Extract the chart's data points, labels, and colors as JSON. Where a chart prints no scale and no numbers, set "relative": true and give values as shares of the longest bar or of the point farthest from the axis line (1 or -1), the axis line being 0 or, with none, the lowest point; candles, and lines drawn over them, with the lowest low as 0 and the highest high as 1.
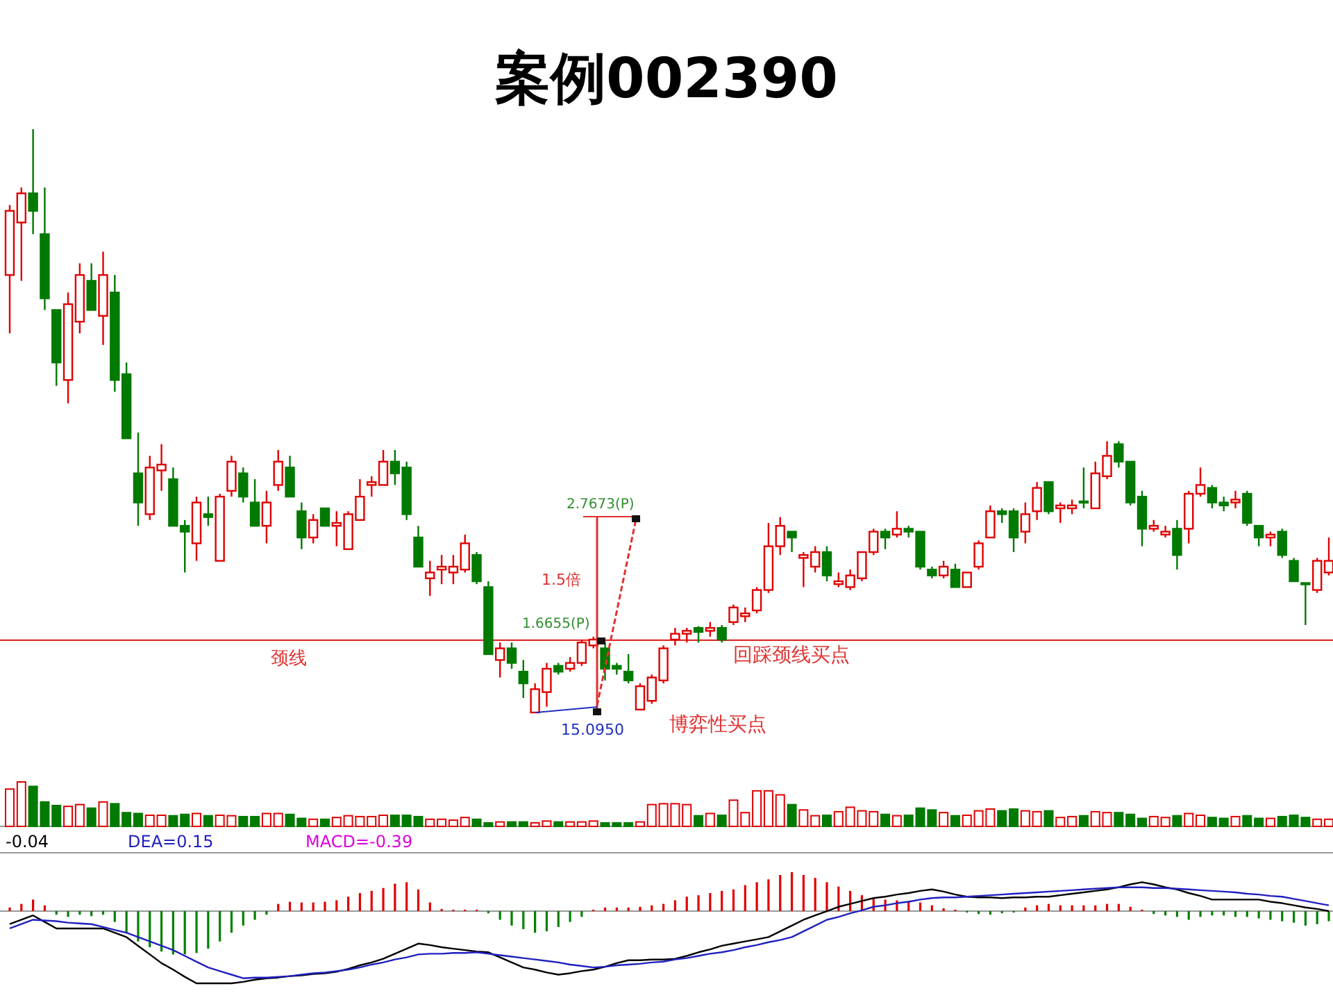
{
  "chart_data": [
    {
      "type": "candlestick",
      "title": "案例002390",
      "relative": true,
      "colors": [
        "#e00000",
        "#e00000",
        "#007a00",
        "#007a00",
        "#007a00",
        "#e00000",
        "#e00000",
        "#007a00",
        "#e00000",
        "#007a00",
        "#007a00",
        "#007a00",
        "#e00000",
        "#e00000",
        "#007a00",
        "#007a00",
        "#e00000",
        "#007a00",
        "#e00000",
        "#e00000",
        "#007a00",
        "#007a00",
        "#e00000",
        "#e00000",
        "#007a00",
        "#007a00",
        "#e00000",
        "#007a00",
        "#e00000",
        "#e00000",
        "#e00000",
        "#e00000",
        "#e00000",
        "#007a00",
        "#007a00",
        "#007a00",
        "#e00000",
        "#e00000",
        "#e00000",
        "#e00000",
        "#007a00",
        "#007a00",
        "#e00000",
        "#007a00",
        "#007a00",
        "#e00000",
        "#e00000",
        "#007a00",
        "#e00000",
        "#e00000",
        "#e00000",
        "#007a00",
        "#007a00",
        "#007a00",
        "#e00000",
        "#e00000",
        "#e00000",
        "#e00000",
        "#e00000",
        "#007a00",
        "#e00000",
        "#007a00",
        "#e00000",
        "#e00000",
        "#e00000",
        "#e00000",
        "#e00000",
        "#007a00",
        "#e00000",
        "#e00000",
        "#007a00",
        "#e00000",
        "#e00000",
        "#e00000",
        "#e00000",
        "#007a00",
        "#e00000",
        "#007a00",
        "#007a00",
        "#007a00",
        "#e00000",
        "#007a00",
        "#e00000",
        "#e00000",
        "#e00000",
        "#007a00",
        "#007a00",
        "#e00000",
        "#e00000",
        "#007a00",
        "#e00000",
        "#e00000",
        "#007a00",
        "#e00000",
        "#e00000",
        "#007a00",
        "#007a00",
        "#007a00",
        "#e00000",
        "#e00000",
        "#007a00",
        "#e00000",
        "#e00000",
        "#007a00",
        "#007a00",
        "#e00000",
        "#007a00",
        "#007a00",
        "#e00000",
        "#007a00",
        "#007a00",
        "#007a00",
        "#e00000",
        "#e00000"
      ],
      "categories": [
        null,
        null,
        null,
        null,
        null,
        null,
        null,
        null,
        null,
        null,
        null,
        null,
        null,
        null,
        null,
        null,
        null,
        null,
        null,
        null,
        null,
        null,
        null,
        null,
        null,
        null,
        null,
        null,
        null,
        null,
        null,
        null,
        null,
        null,
        null,
        null,
        null,
        null,
        null,
        null,
        null,
        null,
        null,
        null,
        null,
        null,
        null,
        null,
        null,
        null,
        null,
        null,
        null,
        null,
        null,
        null,
        null,
        null,
        null,
        null,
        null,
        null,
        null,
        null,
        null,
        null,
        null,
        null,
        null,
        null,
        null,
        null,
        null,
        null,
        null,
        null,
        null,
        null,
        null,
        null,
        null,
        null,
        null,
        null,
        null,
        null,
        null,
        null,
        null,
        null,
        null,
        null,
        null,
        null,
        null,
        null,
        null,
        null,
        null,
        null,
        null,
        null,
        null,
        null,
        null,
        null,
        null,
        null,
        null,
        null,
        null,
        null,
        null,
        null
      ],
      "ohlc": [
        [
          0.75,
          0.87,
          0.65,
          0.86
        ],
        [
          0.84,
          0.9,
          0.74,
          0.89
        ],
        [
          0.89,
          1,
          0.82,
          0.86
        ],
        [
          0.82,
          0.9,
          0.69,
          0.71
        ],
        [
          0.69,
          0.69,
          0.56,
          0.6
        ],
        [
          0.57,
          0.72,
          0.53,
          0.7
        ],
        [
          0.67,
          0.77,
          0.65,
          0.75
        ],
        [
          0.74,
          0.77,
          0.69,
          0.69
        ],
        [
          0.68,
          0.79,
          0.63,
          0.75
        ],
        [
          0.72,
          0.75,
          0.55,
          0.57
        ],
        [
          0.58,
          0.6,
          0.47,
          0.47
        ],
        [
          0.41,
          0.48,
          0.32,
          0.36
        ],
        [
          0.34,
          0.44,
          0.33,
          0.42
        ],
        [
          0.415,
          0.46,
          0.38,
          0.425
        ],
        [
          0.4,
          0.42,
          0.32,
          0.32
        ],
        [
          0.32,
          0.33,
          0.24,
          0.31
        ],
        [
          0.29,
          0.37,
          0.26,
          0.36
        ],
        [
          0.34,
          0.37,
          0.32,
          0.335
        ],
        [
          0.26,
          0.375,
          0.26,
          0.37
        ],
        [
          0.38,
          0.44,
          0.37,
          0.43
        ],
        [
          0.41,
          0.42,
          0.36,
          0.37
        ],
        [
          0.36,
          0.4,
          0.32,
          0.32
        ],
        [
          0.32,
          0.38,
          0.29,
          0.36
        ],
        [
          0.39,
          0.45,
          0.38,
          0.43
        ],
        [
          0.42,
          0.44,
          0.37,
          0.37
        ],
        [
          0.345,
          0.36,
          0.28,
          0.3
        ],
        [
          0.3,
          0.34,
          0.29,
          0.33
        ],
        [
          0.35,
          0.35,
          0.32,
          0.32
        ],
        [
          0.32,
          0.345,
          0.285,
          0.325
        ],
        [
          0.28,
          0.345,
          0.28,
          0.34
        ],
        [
          0.33,
          0.4,
          0.33,
          0.37
        ],
        [
          0.39,
          0.405,
          0.37,
          0.395
        ],
        [
          0.39,
          0.45,
          0.39,
          0.43
        ],
        [
          0.43,
          0.45,
          0.39,
          0.41
        ],
        [
          0.42,
          0.43,
          0.33,
          0.34
        ],
        [
          0.3,
          0.32,
          0.25,
          0.25
        ],
        [
          0.23,
          0.26,
          0.2,
          0.24
        ],
        [
          0.245,
          0.27,
          0.22,
          0.25
        ],
        [
          0.24,
          0.27,
          0.22,
          0.25
        ],
        [
          0.245,
          0.305,
          0.24,
          0.29
        ],
        [
          0.27,
          0.275,
          0.22,
          0.225
        ],
        [
          0.215,
          0.225,
          0.1,
          0.1
        ],
        [
          0.09,
          0.12,
          0.06,
          0.11
        ],
        [
          0.11,
          0.12,
          0.075,
          0.085
        ],
        [
          0.07,
          0.09,
          0.025,
          0.05
        ],
        [
          0,
          0.05,
          0,
          0.04
        ],
        [
          0.035,
          0.085,
          0.01,
          0.075
        ],
        [
          0.08,
          0.085,
          0.065,
          0.07
        ],
        [
          0.075,
          0.095,
          0.07,
          0.085
        ],
        [
          0.085,
          0.125,
          0.08,
          0.12
        ],
        [
          0.115,
          0.13,
          0.11,
          0.125
        ],
        [
          0.11,
          0.12,
          0.055,
          0.075
        ],
        [
          0.08,
          0.085,
          0.065,
          0.075
        ],
        [
          0.07,
          0.1,
          0.05,
          0.055
        ],
        [
          0.005,
          0.05,
          0.005,
          0.045
        ],
        [
          0.02,
          0.065,
          0.015,
          0.06
        ],
        [
          0.055,
          0.115,
          0.05,
          0.11
        ],
        [
          0.125,
          0.145,
          0.115,
          0.135
        ],
        [
          0.135,
          0.145,
          0.12,
          0.14
        ],
        [
          0.145,
          0.148,
          0.12,
          0.138
        ],
        [
          0.14,
          0.155,
          0.13,
          0.145
        ],
        [
          0.145,
          0.15,
          0.12,
          0.125
        ],
        [
          0.155,
          0.185,
          0.15,
          0.18
        ],
        [
          0.165,
          0.18,
          0.155,
          0.17
        ],
        [
          0.175,
          0.215,
          0.17,
          0.21
        ],
        [
          0.21,
          0.325,
          0.205,
          0.285
        ],
        [
          0.285,
          0.335,
          0.27,
          0.32
        ],
        [
          0.31,
          0.31,
          0.275,
          0.3
        ],
        [
          0.265,
          0.275,
          0.215,
          0.27
        ],
        [
          0.25,
          0.285,
          0.24,
          0.275
        ],
        [
          0.275,
          0.285,
          0.225,
          0.235
        ],
        [
          0.22,
          0.24,
          0.215,
          0.225
        ],
        [
          0.215,
          0.245,
          0.21,
          0.235
        ],
        [
          0.23,
          0.275,
          0.225,
          0.275
        ],
        [
          0.275,
          0.315,
          0.27,
          0.31
        ],
        [
          0.31,
          0.315,
          0.28,
          0.3
        ],
        [
          0.305,
          0.345,
          0.3,
          0.315
        ],
        [
          0.315,
          0.32,
          0.3,
          0.31
        ],
        [
          0.31,
          0.31,
          0.245,
          0.25
        ],
        [
          0.245,
          0.25,
          0.23,
          0.235
        ],
        [
          0.235,
          0.26,
          0.23,
          0.25
        ],
        [
          0.245,
          0.255,
          0.215,
          0.215
        ],
        [
          0.215,
          0.24,
          0.215,
          0.24
        ],
        [
          0.25,
          0.295,
          0.245,
          0.29
        ],
        [
          0.3,
          0.355,
          0.3,
          0.345
        ],
        [
          0.345,
          0.35,
          0.325,
          0.34
        ],
        [
          0.345,
          0.35,
          0.275,
          0.3
        ],
        [
          0.31,
          0.36,
          0.29,
          0.34
        ],
        [
          0.345,
          0.395,
          0.33,
          0.385
        ],
        [
          0.395,
          0.395,
          0.34,
          0.345
        ],
        [
          0.35,
          0.36,
          0.325,
          0.355
        ],
        [
          0.35,
          0.365,
          0.34,
          0.355
        ],
        [
          0.362,
          0.42,
          0.35,
          0.36
        ],
        [
          0.35,
          0.43,
          0.35,
          0.41
        ],
        [
          0.405,
          0.465,
          0.4,
          0.44
        ],
        [
          0.46,
          0.465,
          0.42,
          0.43
        ],
        [
          0.43,
          0.43,
          0.355,
          0.36
        ],
        [
          0.37,
          0.38,
          0.285,
          0.315
        ],
        [
          0.315,
          0.33,
          0.31,
          0.32
        ],
        [
          0.305,
          0.32,
          0.3,
          0.31
        ],
        [
          0.315,
          0.33,
          0.245,
          0.27
        ],
        [
          0.315,
          0.38,
          0.29,
          0.375
        ],
        [
          0.375,
          0.42,
          0.37,
          0.39
        ],
        [
          0.385,
          0.39,
          0.35,
          0.36
        ],
        [
          0.36,
          0.37,
          0.345,
          0.355
        ],
        [
          0.36,
          0.38,
          0.35,
          0.365
        ],
        [
          0.375,
          0.38,
          0.32,
          0.325
        ],
        [
          0.32,
          0.32,
          0.285,
          0.3
        ],
        [
          0.3,
          0.31,
          0.285,
          0.305
        ],
        [
          0.31,
          0.315,
          0.265,
          0.27
        ],
        [
          0.26,
          0.265,
          0.225,
          0.225
        ],
        [
          0.222,
          0.222,
          0.15,
          0.22
        ],
        [
          0.21,
          0.265,
          0.205,
          0.26
        ],
        [
          0.24,
          0.3,
          0.235,
          0.26
        ]
      ],
      "ref_lines": [
        {
          "axis": "y",
          "value": 0.124,
          "label": "颈线",
          "color": "#e03030"
        }
      ],
      "annotations": [
        "2.7673(P)",
        "1.5倍",
        "1.6655(P)",
        "15.0950",
        "回踩颈线买点",
        "博弈性买点"
      ]
    },
    {
      "type": "bar",
      "relative": true,
      "categories": [
        null,
        null,
        null,
        null,
        null,
        null,
        null,
        null,
        null,
        null,
        null,
        null,
        null,
        null,
        null,
        null,
        null,
        null,
        null,
        null,
        null,
        null,
        null,
        null,
        null,
        null,
        null,
        null,
        null,
        null,
        null,
        null,
        null,
        null,
        null,
        null,
        null,
        null,
        null,
        null,
        null,
        null,
        null,
        null,
        null,
        null,
        null,
        null,
        null,
        null,
        null,
        null,
        null,
        null,
        null,
        null,
        null,
        null,
        null,
        null,
        null,
        null,
        null,
        null,
        null,
        null,
        null,
        null,
        null,
        null,
        null,
        null,
        null,
        null,
        null,
        null,
        null,
        null,
        null,
        null,
        null,
        null,
        null,
        null,
        null,
        null,
        null,
        null,
        null,
        null,
        null,
        null,
        null,
        null,
        null,
        null,
        null,
        null,
        null,
        null,
        null,
        null,
        null,
        null,
        null,
        null,
        null,
        null,
        null,
        null,
        null,
        null,
        null,
        null
      ],
      "colors": [
        "#e00000",
        "#e00000",
        "#007a00",
        "#007a00",
        "#007a00",
        "#e00000",
        "#e00000",
        "#007a00",
        "#e00000",
        "#007a00",
        "#007a00",
        "#007a00",
        "#e00000",
        "#e00000",
        "#007a00",
        "#007a00",
        "#e00000",
        "#007a00",
        "#e00000",
        "#e00000",
        "#007a00",
        "#007a00",
        "#e00000",
        "#e00000",
        "#007a00",
        "#007a00",
        "#e00000",
        "#007a00",
        "#e00000",
        "#e00000",
        "#e00000",
        "#e00000",
        "#e00000",
        "#007a00",
        "#007a00",
        "#007a00",
        "#e00000",
        "#e00000",
        "#e00000",
        "#e00000",
        "#007a00",
        "#007a00",
        "#e00000",
        "#007a00",
        "#007a00",
        "#e00000",
        "#e00000",
        "#007a00",
        "#e00000",
        "#e00000",
        "#e00000",
        "#007a00",
        "#007a00",
        "#007a00",
        "#e00000",
        "#e00000",
        "#e00000",
        "#e00000",
        "#e00000",
        "#007a00",
        "#e00000",
        "#007a00",
        "#e00000",
        "#e00000",
        "#e00000",
        "#e00000",
        "#e00000",
        "#007a00",
        "#e00000",
        "#e00000",
        "#007a00",
        "#e00000",
        "#e00000",
        "#e00000",
        "#e00000",
        "#007a00",
        "#e00000",
        "#007a00",
        "#007a00",
        "#007a00",
        "#e00000",
        "#007a00",
        "#e00000",
        "#e00000",
        "#e00000",
        "#007a00",
        "#007a00",
        "#e00000",
        "#e00000",
        "#007a00",
        "#e00000",
        "#e00000",
        "#007a00",
        "#e00000",
        "#e00000",
        "#007a00",
        "#007a00",
        "#007a00",
        "#e00000",
        "#e00000",
        "#007a00",
        "#e00000",
        "#e00000",
        "#007a00",
        "#007a00",
        "#e00000",
        "#007a00",
        "#007a00",
        "#e00000",
        "#007a00",
        "#007a00",
        "#007a00",
        "#e00000",
        "#e00000"
      ],
      "values": [
        0.84,
        1,
        0.9,
        0.55,
        0.47,
        0.45,
        0.49,
        0.41,
        0.55,
        0.51,
        0.31,
        0.29,
        0.25,
        0.25,
        0.24,
        0.27,
        0.29,
        0.24,
        0.25,
        0.24,
        0.22,
        0.22,
        0.29,
        0.29,
        0.27,
        0.18,
        0.16,
        0.16,
        0.2,
        0.24,
        0.22,
        0.22,
        0.25,
        0.25,
        0.25,
        0.22,
        0.16,
        0.16,
        0.14,
        0.2,
        0.16,
        0.08,
        0.1,
        0.1,
        0.1,
        0.08,
        0.12,
        0.1,
        0.1,
        0.1,
        0.12,
        0.08,
        0.08,
        0.08,
        0.1,
        0.49,
        0.51,
        0.51,
        0.49,
        0.24,
        0.29,
        0.25,
        0.59,
        0.31,
        0.8,
        0.8,
        0.71,
        0.49,
        0.37,
        0.24,
        0.25,
        0.33,
        0.43,
        0.35,
        0.33,
        0.27,
        0.24,
        0.25,
        0.41,
        0.37,
        0.31,
        0.24,
        0.25,
        0.35,
        0.39,
        0.35,
        0.39,
        0.35,
        0.33,
        0.35,
        0.2,
        0.22,
        0.24,
        0.33,
        0.31,
        0.31,
        0.27,
        0.18,
        0.22,
        0.2,
        0.24,
        0.29,
        0.25,
        0.2,
        0.18,
        0.22,
        0.24,
        0.18,
        0.18,
        0.22,
        0.25,
        0.2,
        0.16,
        0.16
      ]
    },
    {
      "type": "bar",
      "relative": true,
      "categories": [
        null,
        null,
        null,
        null,
        null,
        null,
        null,
        null,
        null,
        null,
        null,
        null,
        null,
        null,
        null,
        null,
        null,
        null,
        null,
        null,
        null,
        null,
        null,
        null,
        null,
        null,
        null,
        null,
        null,
        null,
        null,
        null,
        null,
        null,
        null,
        null,
        null,
        null,
        null,
        null,
        null,
        null,
        null,
        null,
        null,
        null,
        null,
        null,
        null,
        null,
        null,
        null,
        null,
        null,
        null,
        null,
        null,
        null,
        null,
        null,
        null,
        null,
        null,
        null,
        null,
        null,
        null,
        null,
        null,
        null,
        null,
        null,
        null,
        null,
        null,
        null,
        null,
        null,
        null,
        null,
        null,
        null,
        null,
        null,
        null,
        null,
        null,
        null,
        null,
        null,
        null,
        null,
        null,
        null,
        null,
        null,
        null,
        null,
        null,
        null,
        null,
        null,
        null,
        null,
        null,
        null,
        null,
        null,
        null,
        null,
        null,
        null,
        null,
        null
      ],
      "series": [
        {
          "type": "bar",
          "colors": [
            "#e00000",
            "#e00000",
            "#e00000",
            "#e00000",
            "#008000",
            "#008000",
            "#008000",
            "#008000",
            "#008000",
            "#008000",
            "#008000",
            "#008000",
            "#008000",
            "#008000",
            "#008000",
            "#008000",
            "#008000",
            "#008000",
            "#008000",
            "#008000",
            "#008000",
            "#008000",
            "#008000",
            "#e00000",
            "#e00000",
            "#e00000",
            "#e00000",
            "#e00000",
            "#e00000",
            "#e00000",
            "#e00000",
            "#e00000",
            "#e00000",
            "#e00000",
            "#e00000",
            "#e00000",
            "#e00000",
            "#e00000",
            "#e00000",
            "#e00000",
            "#e00000",
            "#008000",
            "#008000",
            "#008000",
            "#008000",
            "#008000",
            "#008000",
            "#008000",
            "#008000",
            "#008000",
            "#e00000",
            "#e00000",
            "#e00000",
            "#e00000",
            "#e00000",
            "#e00000",
            "#e00000",
            "#e00000",
            "#e00000",
            "#e00000",
            "#e00000",
            "#e00000",
            "#e00000",
            "#e00000",
            "#e00000",
            "#e00000",
            "#e00000",
            "#e00000",
            "#e00000",
            "#e00000",
            "#e00000",
            "#e00000",
            "#e00000",
            "#e00000",
            "#e00000",
            "#e00000",
            "#e00000",
            "#e00000",
            "#e00000",
            "#e00000",
            "#e00000",
            "#e00000",
            "#008000",
            "#008000",
            "#008000",
            "#008000",
            "#008000",
            "#e00000",
            "#e00000",
            "#e00000",
            "#e00000",
            "#e00000",
            "#e00000",
            "#e00000",
            "#e00000",
            "#e00000",
            "#e00000",
            "#e00000",
            "#008000",
            "#008000",
            "#008000",
            "#008000",
            "#008000",
            "#008000",
            "#008000",
            "#008000",
            "#008000",
            "#008000",
            "#008000",
            "#008000",
            "#008000",
            "#008000",
            "#008000",
            "#008000"
          ],
          "values": [
            0.05,
            0.1,
            0.16,
            0.08,
            -0.05,
            -0.08,
            -0.05,
            -0.07,
            -0.05,
            -0.15,
            -0.3,
            -0.42,
            -0.5,
            -0.56,
            -0.6,
            -0.6,
            -0.58,
            -0.52,
            -0.42,
            -0.3,
            -0.2,
            -0.12,
            -0.05,
            0.1,
            0.13,
            0.12,
            0.12,
            0.13,
            0.15,
            0.2,
            0.25,
            0.28,
            0.32,
            0.38,
            0.4,
            0.3,
            0.12,
            0.03,
            0.02,
            0.02,
            0.02,
            -0.03,
            -0.12,
            -0.2,
            -0.25,
            -0.3,
            -0.28,
            -0.22,
            -0.15,
            -0.08,
            0.02,
            0.05,
            0.05,
            0.05,
            0.06,
            0.08,
            0.1,
            0.15,
            0.2,
            0.22,
            0.25,
            0.28,
            0.3,
            0.36,
            0.4,
            0.44,
            0.5,
            0.54,
            0.5,
            0.46,
            0.4,
            0.34,
            0.28,
            0.22,
            0.18,
            0.16,
            0.15,
            0.14,
            0.12,
            0.08,
            0.04,
            0.02,
            -0.02,
            -0.04,
            -0.05,
            -0.03,
            -0.02,
            0.05,
            0.08,
            0.1,
            0.08,
            0.08,
            0.08,
            0.08,
            0.1,
            0.1,
            0.06,
            0.02,
            -0.04,
            -0.06,
            -0.08,
            -0.12,
            -0.08,
            -0.06,
            -0.06,
            -0.08,
            -0.08,
            -0.1,
            -0.12,
            -0.14,
            -0.16,
            -0.2,
            -0.18,
            -0.14
          ]
        },
        {
          "type": "line",
          "color": "#000000",
          "values": [
            -0.18,
            -0.12,
            -0.06,
            -0.15,
            -0.24,
            -0.24,
            -0.24,
            -0.24,
            -0.24,
            -0.3,
            -0.36,
            -0.48,
            -0.6,
            -0.72,
            -0.81,
            -0.91,
            -1,
            -1,
            -1,
            -1,
            -0.98,
            -0.95,
            -0.93,
            -0.92,
            -0.9,
            -0.89,
            -0.87,
            -0.86,
            -0.84,
            -0.8,
            -0.75,
            -0.71,
            -0.66,
            -0.59,
            -0.52,
            -0.45,
            -0.47,
            -0.5,
            -0.52,
            -0.54,
            -0.56,
            -0.57,
            -0.64,
            -0.71,
            -0.78,
            -0.81,
            -0.85,
            -0.88,
            -0.86,
            -0.83,
            -0.81,
            -0.77,
            -0.72,
            -0.68,
            -0.68,
            -0.67,
            -0.67,
            -0.66,
            -0.62,
            -0.57,
            -0.53,
            -0.48,
            -0.45,
            -0.42,
            -0.39,
            -0.36,
            -0.28,
            -0.2,
            -0.12,
            -0.06,
            0,
            0.06,
            0.1,
            0.14,
            0.18,
            0.2,
            0.23,
            0.25,
            0.28,
            0.3,
            0.27,
            0.23,
            0.2,
            0.19,
            0.19,
            0.18,
            0.19,
            0.19,
            0.2,
            0.2,
            0.22,
            0.24,
            0.26,
            0.28,
            0.3,
            0.33,
            0.37,
            0.4,
            0.37,
            0.33,
            0.3,
            0.25,
            0.21,
            0.16,
            0.16,
            0.16,
            0.16,
            0.16,
            0.13,
            0.11,
            0.08,
            0.05,
            0.03,
            0
          ]
        },
        {
          "type": "line",
          "color": "#2020c0",
          "values": [
            -0.24,
            -0.18,
            -0.12,
            -0.13,
            -0.14,
            -0.16,
            -0.17,
            -0.18,
            -0.22,
            -0.26,
            -0.3,
            -0.36,
            -0.42,
            -0.48,
            -0.54,
            -0.62,
            -0.7,
            -0.78,
            -0.83,
            -0.88,
            -0.93,
            -0.92,
            -0.92,
            -0.91,
            -0.9,
            -0.88,
            -0.86,
            -0.85,
            -0.83,
            -0.81,
            -0.78,
            -0.74,
            -0.71,
            -0.67,
            -0.64,
            -0.6,
            -0.59,
            -0.59,
            -0.58,
            -0.58,
            -0.57,
            -0.59,
            -0.61,
            -0.63,
            -0.65,
            -0.67,
            -0.69,
            -0.71,
            -0.74,
            -0.76,
            -0.78,
            -0.77,
            -0.75,
            -0.74,
            -0.73,
            -0.71,
            -0.7,
            -0.67,
            -0.65,
            -0.62,
            -0.59,
            -0.57,
            -0.54,
            -0.5,
            -0.47,
            -0.43,
            -0.4,
            -0.36,
            -0.28,
            -0.2,
            -0.12,
            -0.08,
            -0.03,
            0.01,
            0.06,
            0.08,
            0.11,
            0.13,
            0.16,
            0.18,
            0.19,
            0.19,
            0.2,
            0.21,
            0.22,
            0.23,
            0.24,
            0.25,
            0.26,
            0.27,
            0.28,
            0.29,
            0.3,
            0.31,
            0.32,
            0.33,
            0.33,
            0.33,
            0.32,
            0.32,
            0.31,
            0.3,
            0.29,
            0.28,
            0.27,
            0.26,
            0.24,
            0.23,
            0.21,
            0.2,
            0.17,
            0.14,
            0.11,
            0.08
          ]
        }
      ],
      "annotations": [
        "-0.04",
        "DEA=0.15",
        "MACD=-0.39"
      ]
    }
  ]
}
